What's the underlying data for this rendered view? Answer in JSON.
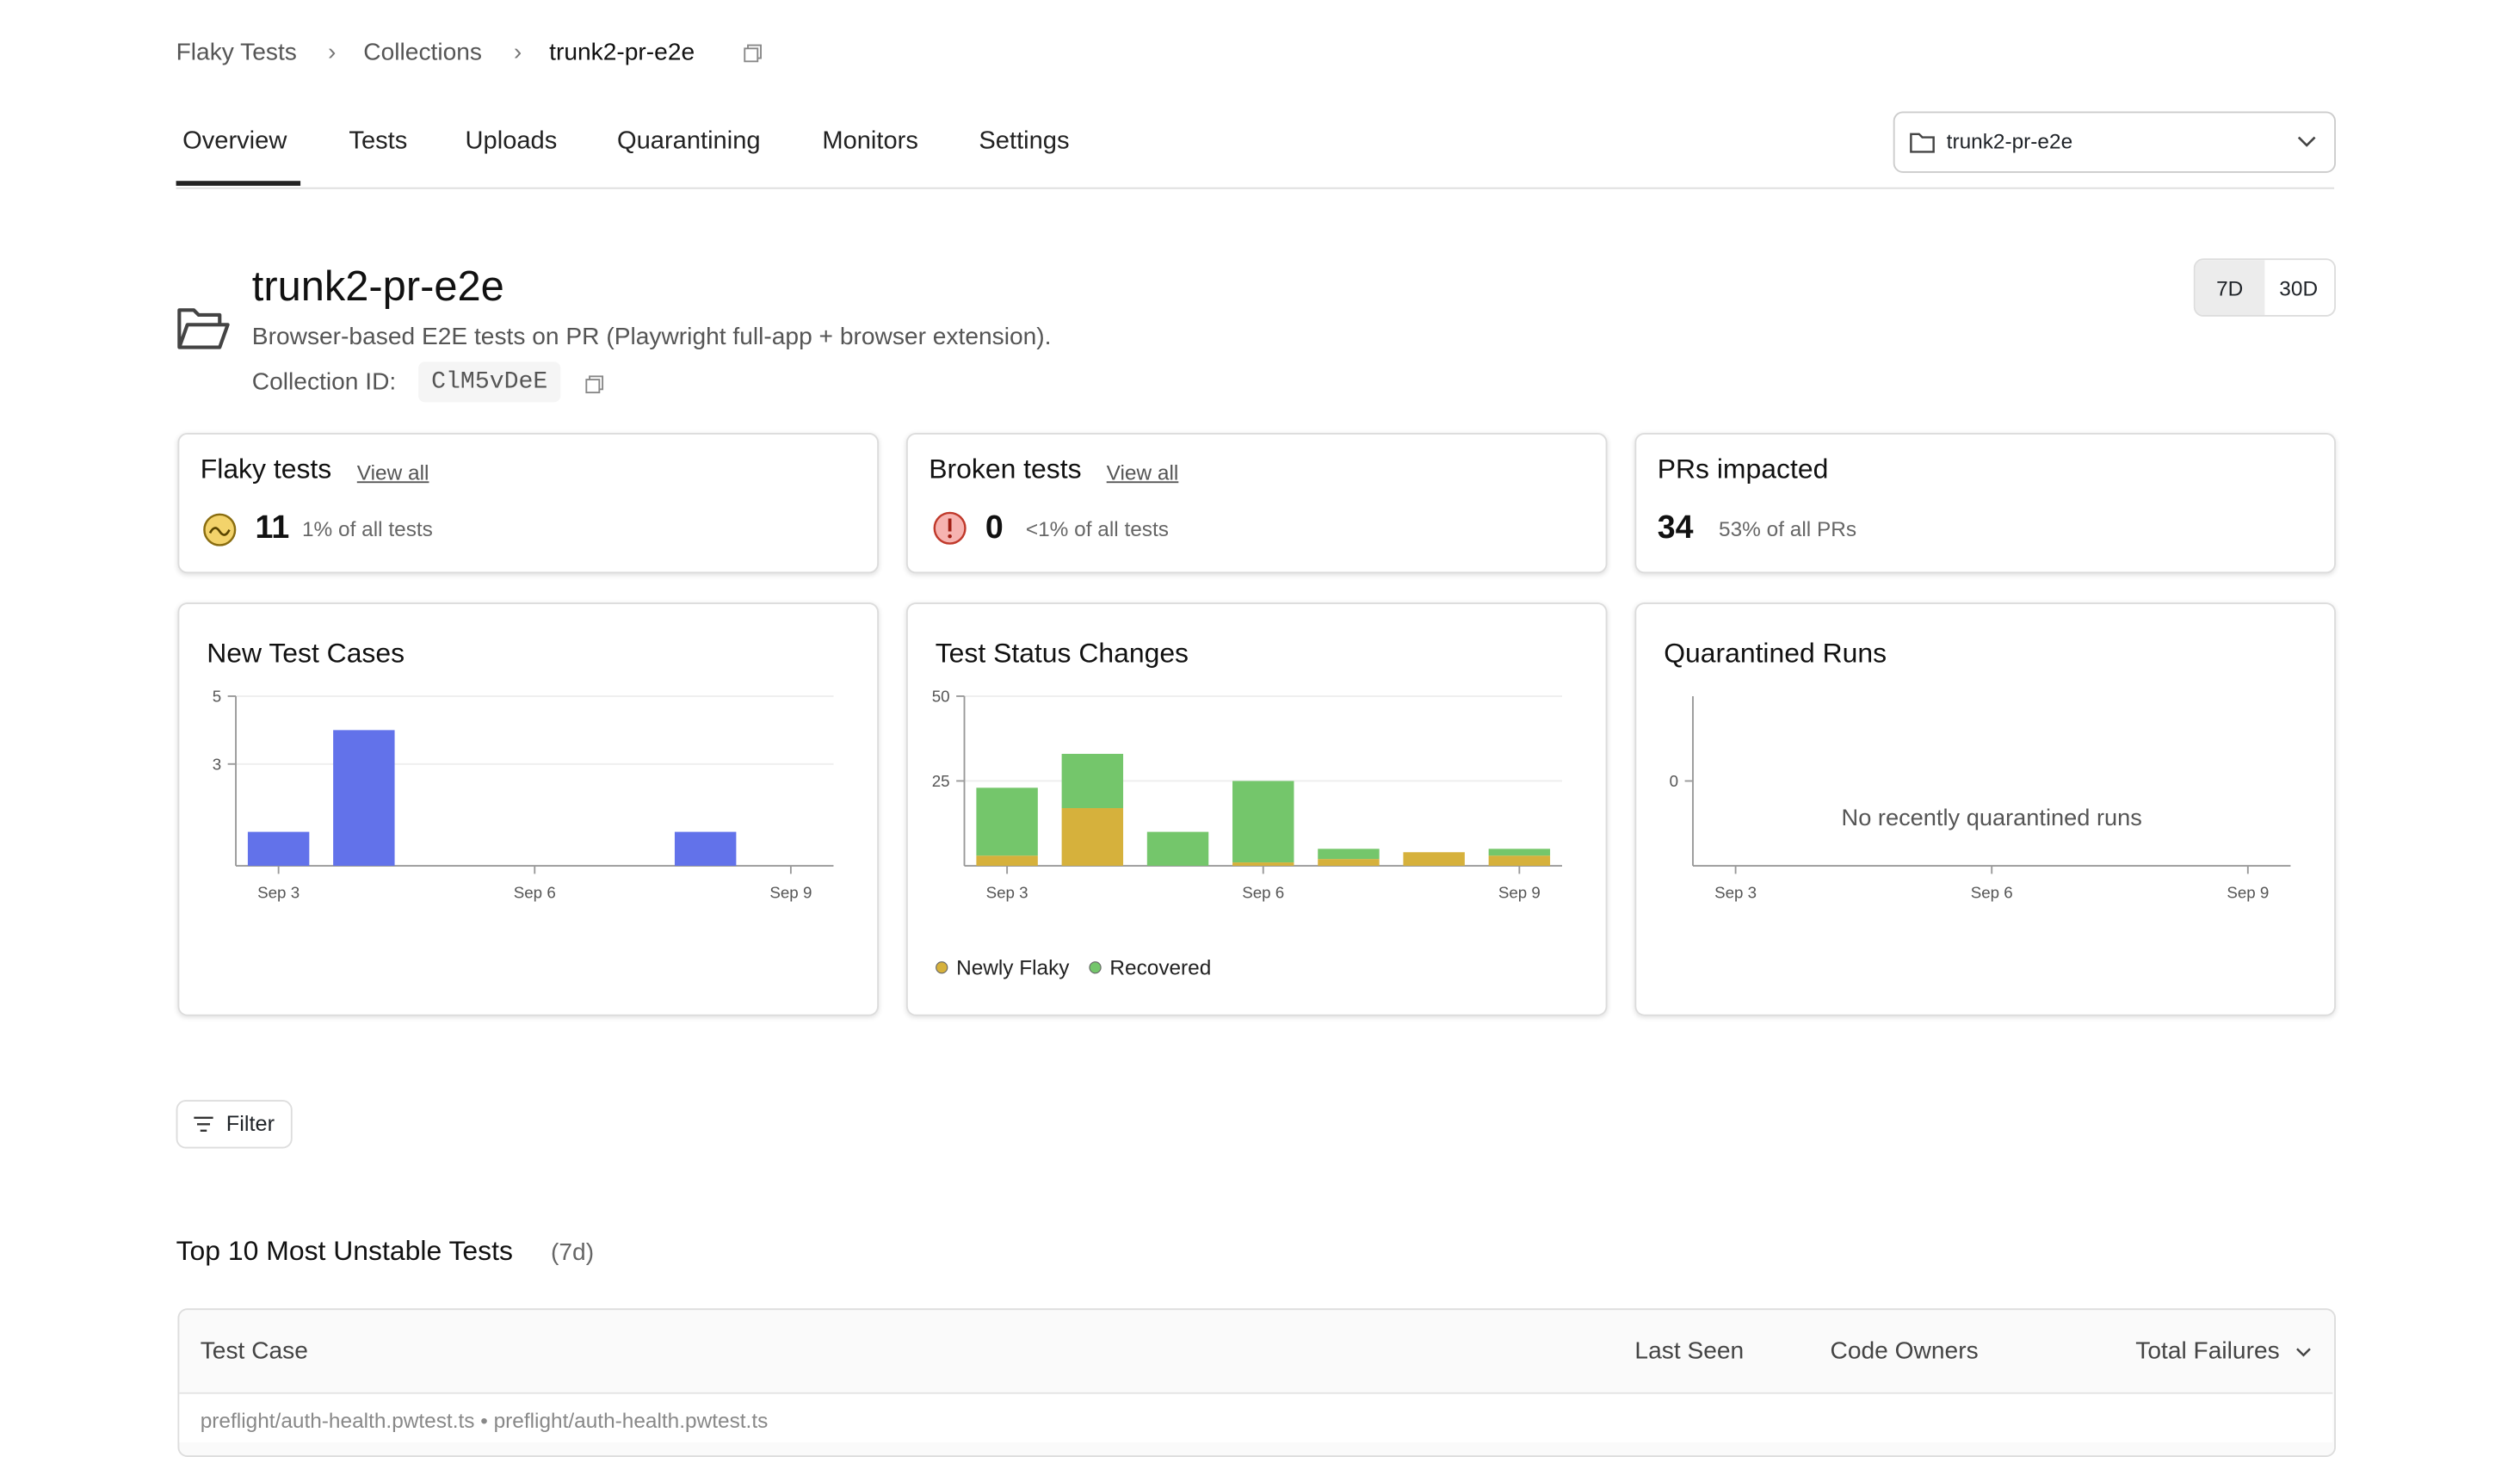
{
  "breadcrumbs": [
    "Flaky Tests",
    "Collections",
    "trunk2-pr-e2e"
  ],
  "tabs": [
    "Overview",
    "Tests",
    "Uploads",
    "Quarantining",
    "Monitors",
    "Settings"
  ],
  "collection_select": "trunk2-pr-e2e",
  "range_toggle": [
    "7D",
    "30D"
  ],
  "header": {
    "title": "trunk2-pr-e2e",
    "description": "Browser-based E2E tests on PR (Playwright full-app + browser extension).",
    "id_label": "Collection ID:",
    "id": "ClM5vDeE"
  },
  "stats": [
    {
      "title": "Flaky tests",
      "link": "View all",
      "value": "11",
      "note": "1% of all tests"
    },
    {
      "title": "Broken tests",
      "link": "View all",
      "value": "0",
      "note": "<1% of all tests"
    },
    {
      "title": "PRs impacted",
      "value": "34",
      "note": "53% of all PRs"
    }
  ],
  "chart_data": [
    {
      "type": "bar",
      "title": "New Test Cases",
      "categories": [
        "Sep 3",
        null,
        null,
        "Sep 6",
        null,
        null,
        "Sep 9"
      ],
      "series": [
        {
          "name": "New Test Cases",
          "color": "#6272ea",
          "values": [
            1,
            4,
            0,
            0,
            0,
            1,
            0
          ]
        }
      ],
      "ylim": [
        0,
        5
      ],
      "yticks": [
        3,
        5
      ],
      "grid": true,
      "legend": false
    },
    {
      "type": "stacked_bar",
      "title": "Test Status Changes",
      "categories": [
        "Sep 3",
        null,
        null,
        "Sep 6",
        null,
        null,
        "Sep 9"
      ],
      "series": [
        {
          "name": "Newly Flaky",
          "color": "#d6b13c",
          "values": [
            3,
            17,
            0,
            1,
            2,
            4,
            3
          ]
        },
        {
          "name": "Recovered",
          "color": "#74c66b",
          "values": [
            20,
            16,
            10,
            24,
            3,
            0,
            2
          ]
        }
      ],
      "ylim": [
        0,
        50
      ],
      "yticks": [
        25,
        50
      ],
      "grid": true,
      "legend": true
    },
    {
      "type": "bar",
      "title": "Quarantined Runs",
      "categories": [
        "Sep 3",
        null,
        null,
        "Sep 6",
        null,
        null,
        "Sep 9"
      ],
      "series": [],
      "ylim": [
        -1,
        1
      ],
      "yticks": [
        0
      ],
      "grid": false,
      "legend": false,
      "empty_message": "No recently quarantined runs"
    }
  ],
  "filter": "Filter",
  "table": {
    "title": "Top 10 Most Unstable Tests",
    "title_note": "(7d)",
    "columns": [
      "Test Case",
      "Last Seen",
      "Code Owners",
      "Total Failures"
    ],
    "rows": [
      [
        "preflight/auth-health.pwtest.ts • preflight/auth-health.pwtest.ts"
      ]
    ]
  }
}
